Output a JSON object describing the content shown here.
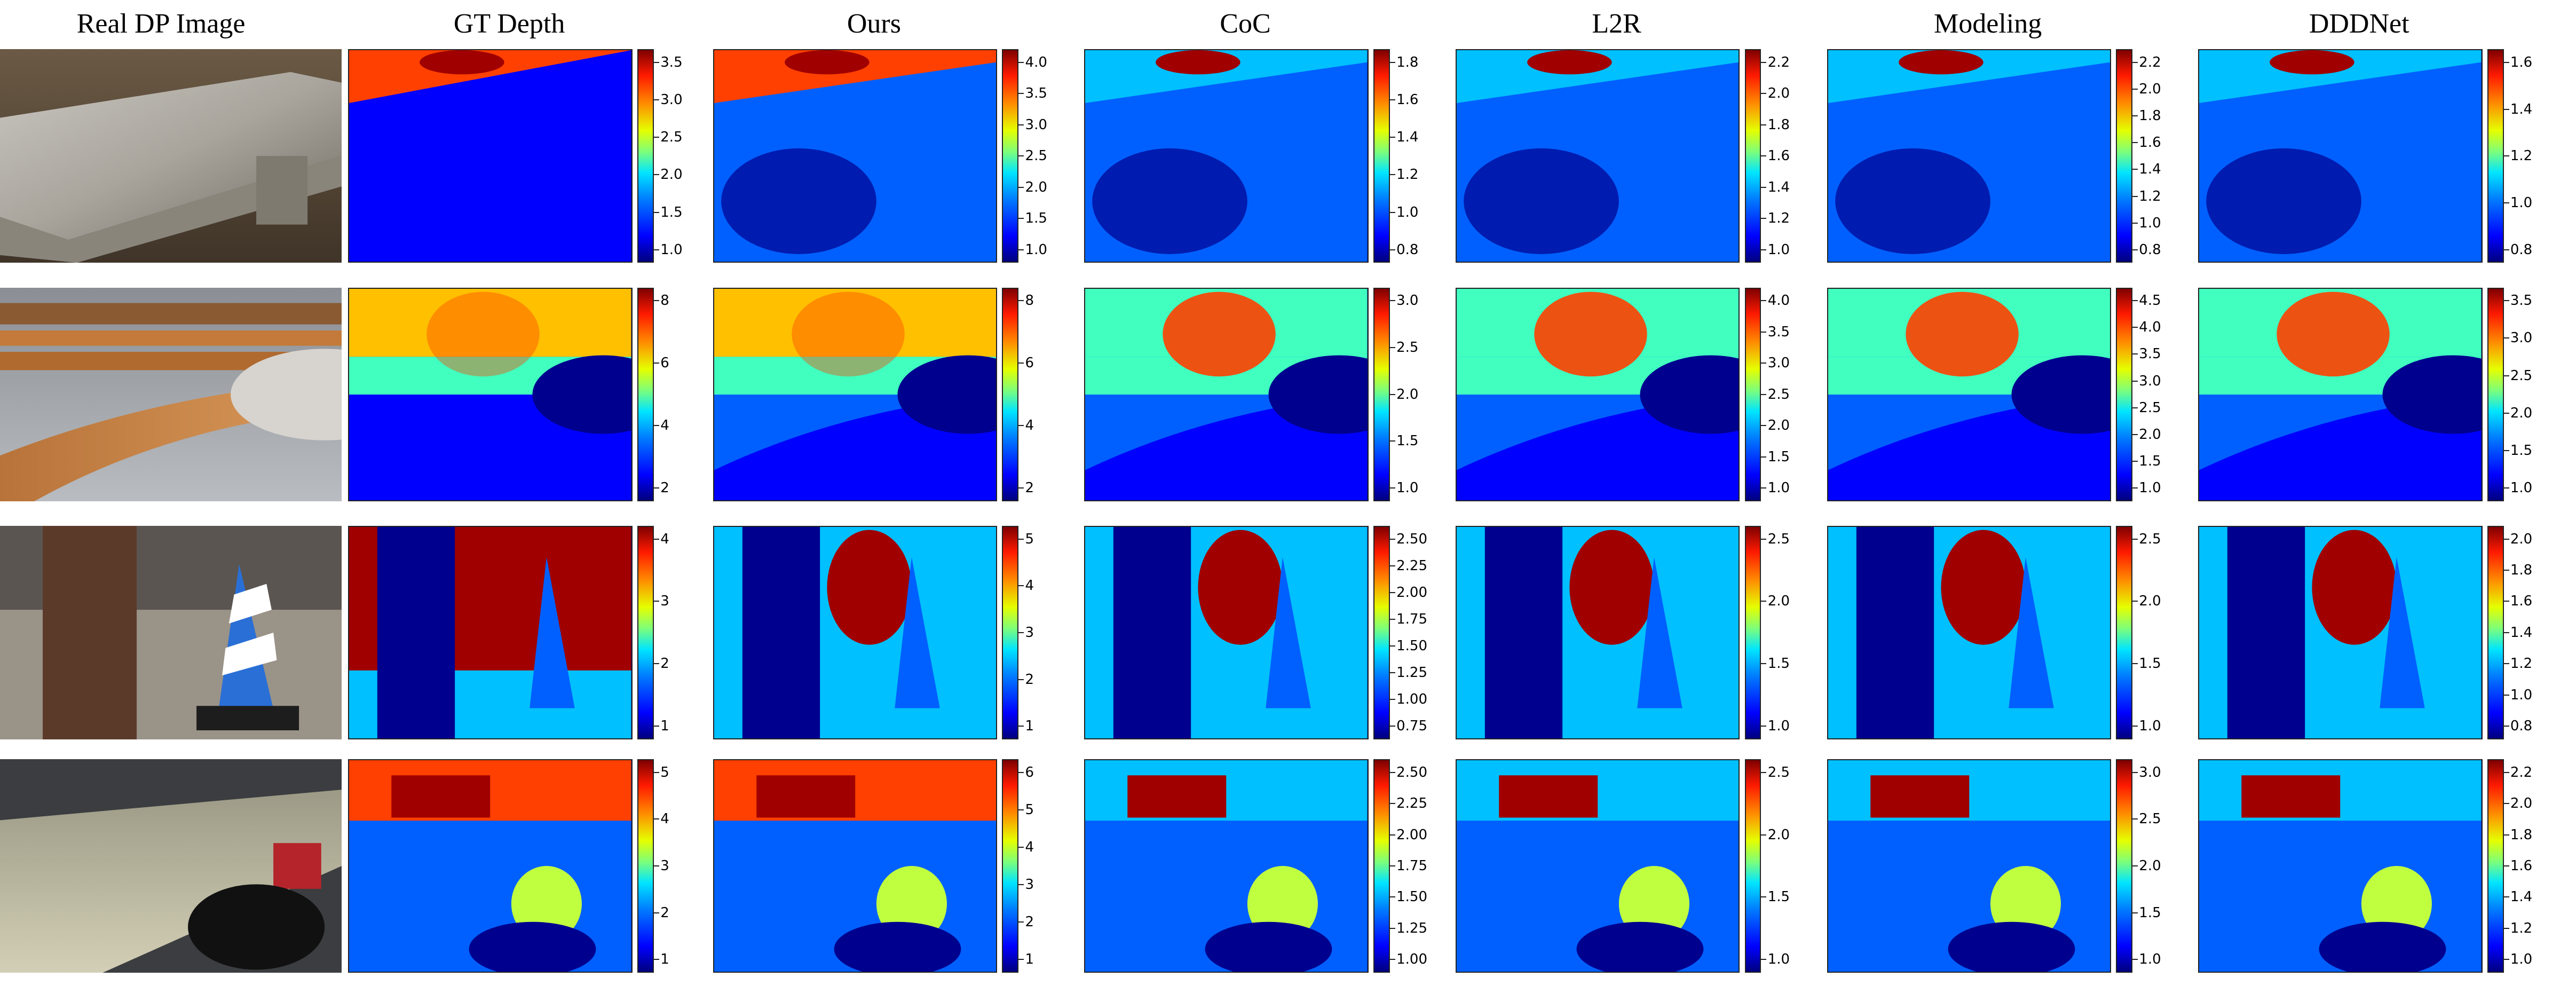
{
  "headers": [
    "Real DP Image",
    "GT Depth",
    "Ours",
    "CoC",
    "L2R",
    "Modeling",
    "DDDNet"
  ],
  "rows": [
    {
      "scene": "stone-bench",
      "colorbars": [
        [
          "3.5",
          "3.0",
          "2.5",
          "2.0",
          "1.5",
          "1.0"
        ],
        [
          "4.0",
          "3.5",
          "3.0",
          "2.5",
          "2.0",
          "1.5",
          "1.0"
        ],
        [
          "1.8",
          "1.6",
          "1.4",
          "1.2",
          "1.0",
          "0.8"
        ],
        [
          "2.2",
          "2.0",
          "1.8",
          "1.6",
          "1.4",
          "1.2",
          "1.0"
        ],
        [
          "2.2",
          "2.0",
          "1.8",
          "1.6",
          "1.4",
          "1.2",
          "1.0",
          "0.8"
        ],
        [
          "1.6",
          "1.4",
          "1.2",
          "1.0",
          "0.8"
        ]
      ]
    },
    {
      "scene": "wooden-bench",
      "colorbars": [
        [
          "8",
          "6",
          "4",
          "2"
        ],
        [
          "8",
          "6",
          "4",
          "2"
        ],
        [
          "3.0",
          "2.5",
          "2.0",
          "1.5",
          "1.0"
        ],
        [
          "4.0",
          "3.5",
          "3.0",
          "2.5",
          "2.0",
          "1.5",
          "1.0"
        ],
        [
          "4.5",
          "4.0",
          "3.5",
          "3.0",
          "2.5",
          "2.0",
          "1.5",
          "1.0"
        ],
        [
          "3.5",
          "3.0",
          "2.5",
          "2.0",
          "1.5",
          "1.0"
        ]
      ]
    },
    {
      "scene": "pole-and-cone",
      "colorbars": [
        [
          "4",
          "3",
          "2",
          "1"
        ],
        [
          "5",
          "4",
          "3",
          "2",
          "1"
        ],
        [
          "2.50",
          "2.25",
          "2.00",
          "1.75",
          "1.50",
          "1.25",
          "1.00",
          "0.75"
        ],
        [
          "2.5",
          "2.0",
          "1.5",
          "1.0"
        ],
        [
          "2.5",
          "2.0",
          "1.5",
          "1.0"
        ],
        [
          "2.0",
          "1.8",
          "1.6",
          "1.4",
          "1.2",
          "1.0",
          "0.8"
        ]
      ]
    },
    {
      "scene": "office-table",
      "colorbars": [
        [
          "5",
          "4",
          "3",
          "2",
          "1"
        ],
        [
          "6",
          "5",
          "4",
          "3",
          "2",
          "1"
        ],
        [
          "2.50",
          "2.25",
          "2.00",
          "1.75",
          "1.50",
          "1.25",
          "1.00"
        ],
        [
          "2.5",
          "2.0",
          "1.5",
          "1.0"
        ],
        [
          "3.0",
          "2.5",
          "2.0",
          "1.5",
          "1.0"
        ],
        [
          "2.2",
          "2.0",
          "1.8",
          "1.6",
          "1.4",
          "1.2",
          "1.0"
        ]
      ]
    }
  ]
}
